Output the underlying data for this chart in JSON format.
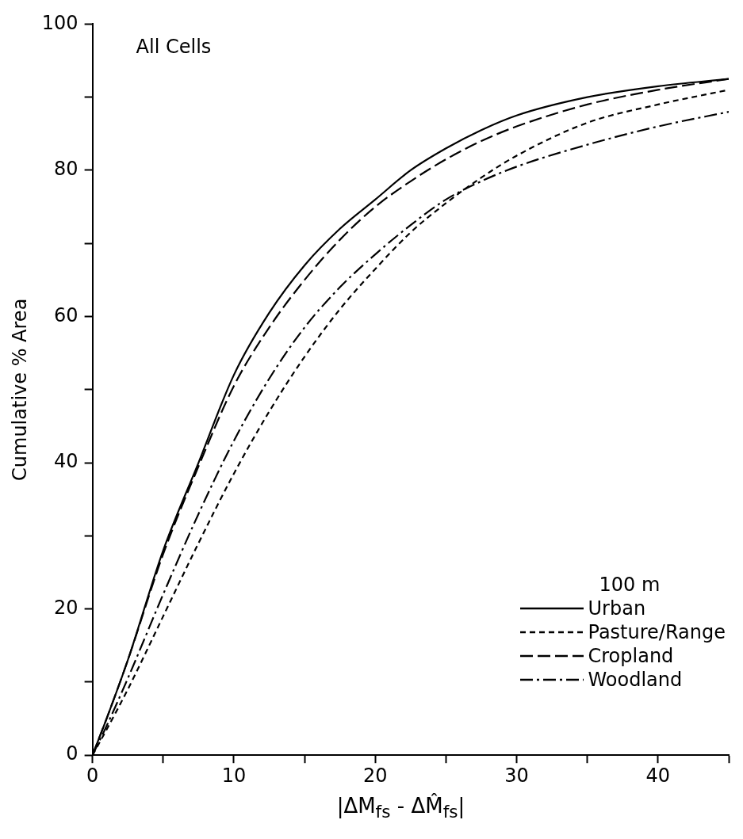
{
  "chart_data": {
    "type": "line",
    "xlabel": "|ΔM$_{fs}$ - ΔM̂$_{fs}$|",
    "ylabel": "Cumulative % Area",
    "legend_title": "100 m",
    "legend": "bottom right",
    "grid": false,
    "marker": "none",
    "annotations": [
      "All Cells"
    ],
    "x": [
      0,
      1,
      2.5,
      5,
      7.5,
      10,
      12.5,
      15,
      17.5,
      20,
      22.5,
      25,
      27.5,
      30,
      35,
      40,
      45
    ],
    "xlim": [
      0,
      45
    ],
    "xticks": [
      0,
      {
        "value": 5,
        "label": null
      },
      10,
      {
        "value": 15,
        "label": null
      },
      20,
      {
        "value": 25,
        "label": null
      },
      30,
      {
        "value": 35,
        "label": null
      },
      40,
      {
        "value": 45,
        "label": null
      }
    ],
    "ylim": [
      0,
      100
    ],
    "yticks": [
      0,
      {
        "value": 10,
        "label": null
      },
      20,
      {
        "value": 30,
        "label": null
      },
      40,
      {
        "value": 50,
        "label": null
      },
      60,
      {
        "value": 70,
        "label": null
      },
      80,
      {
        "value": 90,
        "label": null
      },
      100
    ],
    "series": [
      {
        "name": "Urban",
        "color": "#000000",
        "line_style": "solid",
        "values": [
          0,
          5,
          13,
          28,
          40,
          52,
          60.5,
          67,
          72,
          76,
          80,
          83,
          85.5,
          87.5,
          90,
          91.5,
          92.5
        ]
      },
      {
        "name": "Pasture/Range",
        "color": "#000000",
        "line_style": "dotted",
        "values": [
          0,
          3.5,
          9,
          19,
          29,
          38.5,
          47,
          54.5,
          61,
          66.5,
          71.5,
          75.5,
          79,
          82,
          86.5,
          89,
          91
        ]
      },
      {
        "name": "Cropland",
        "color": "#000000",
        "line_style": "dashed",
        "values": [
          0,
          5,
          13,
          27.5,
          39.5,
          50.5,
          58.5,
          65,
          70.5,
          75,
          78.5,
          81.5,
          84,
          86,
          89,
          91,
          92.5
        ]
      },
      {
        "name": "Woodland",
        "color": "#000000",
        "line_style": "dashdot",
        "values": [
          0,
          4,
          10.5,
          22,
          33,
          43,
          51.5,
          58.5,
          64,
          68.5,
          72.5,
          76,
          78.5,
          80.5,
          83.5,
          86,
          88
        ]
      }
    ]
  }
}
